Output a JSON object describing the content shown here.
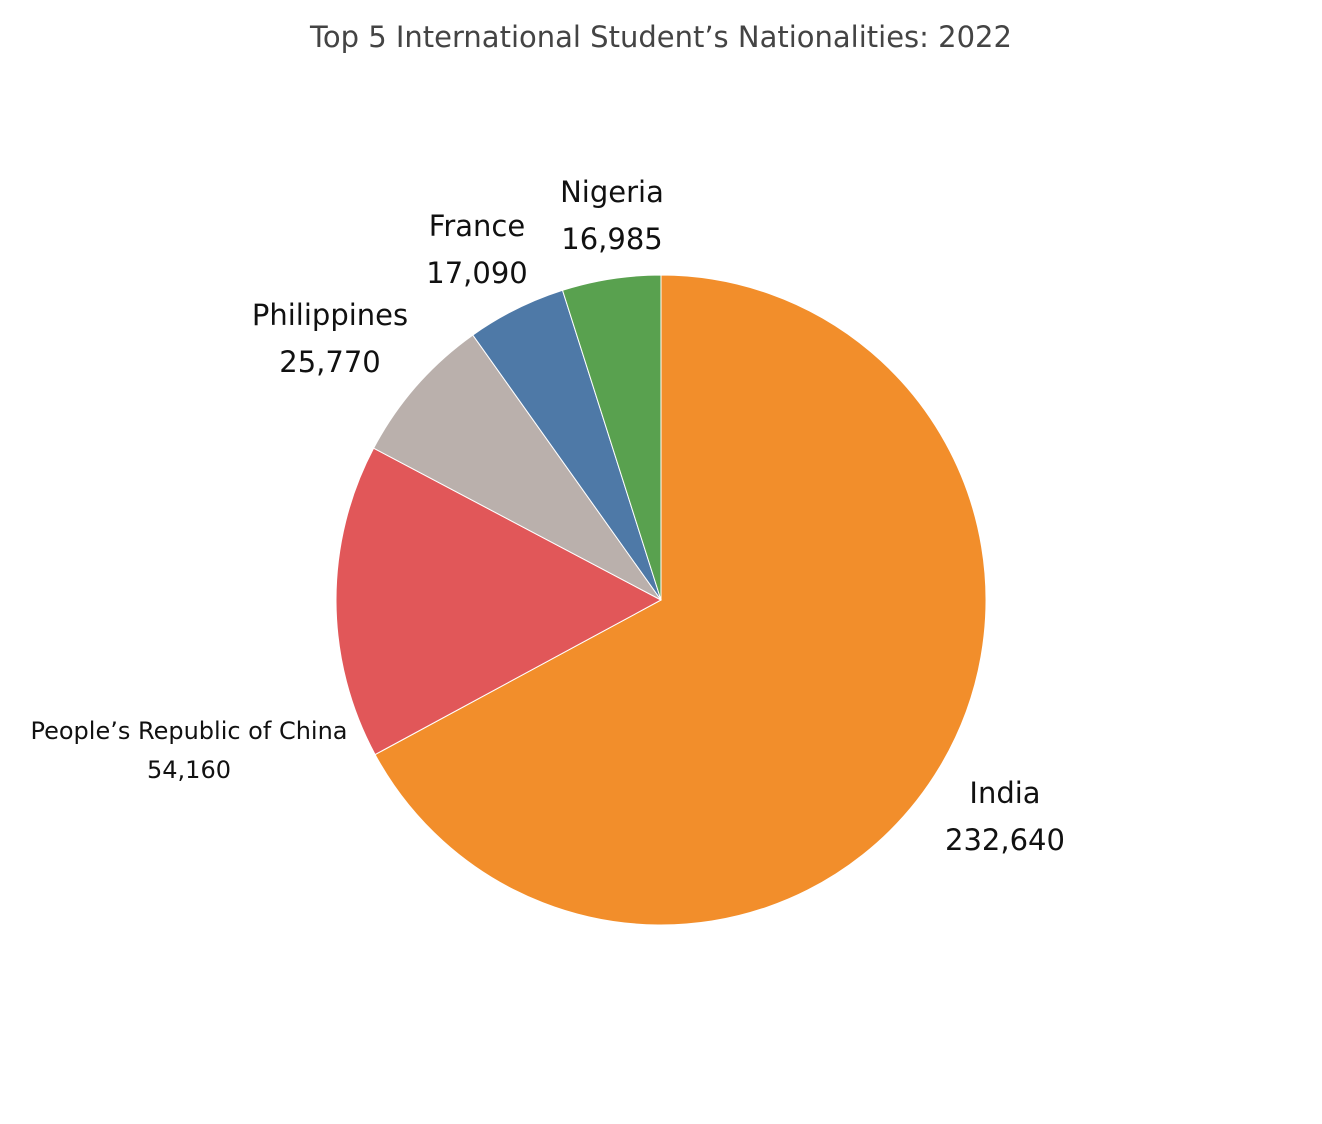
{
  "chart_data": {
    "type": "pie",
    "title": "Top 5 International Student’s Nationalities: 2022",
    "start": "12 o'clock",
    "direction": "clockwise",
    "legend": "none",
    "slices": [
      {
        "label": "India",
        "value": 232640,
        "value_label": "232,640",
        "color": "#F28E2B"
      },
      {
        "label": "People’s Republic of China",
        "value": 54160,
        "value_label": "54,160",
        "color": "#E15759"
      },
      {
        "label": "Philippines",
        "value": 25770,
        "value_label": "25,770",
        "color": "#BAB0AC"
      },
      {
        "label": "France",
        "value": 17090,
        "value_label": "17,090",
        "color": "#4E79A7"
      },
      {
        "label": "Nigeria",
        "value": 16985,
        "value_label": "16,985",
        "color": "#59A14F"
      }
    ]
  }
}
